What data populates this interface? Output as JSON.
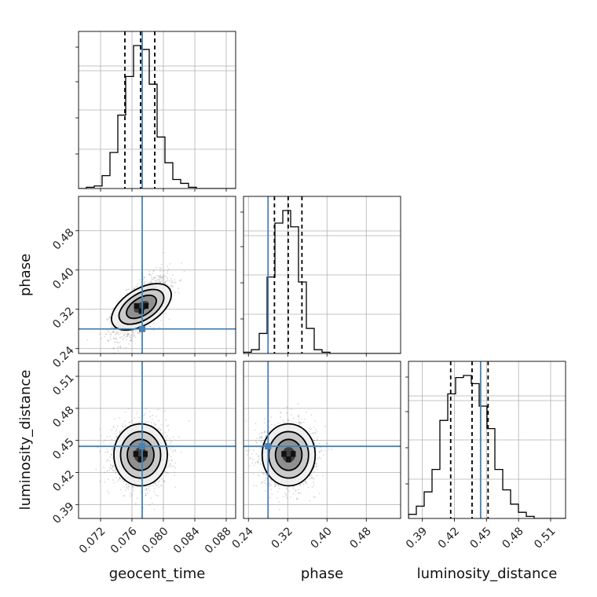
{
  "chart_data": {
    "type": "corner",
    "parameters": [
      {
        "name": "geocent_time",
        "label": "geocent_time",
        "range": [
          0.0692,
          0.0892
        ],
        "ticks": [
          0.072,
          0.076,
          0.08,
          0.084,
          0.088
        ],
        "tick_labels": [
          "0.072",
          "0.076",
          "0.080",
          "0.084",
          "0.088"
        ],
        "truth": 0.0773,
        "quantiles": [
          0.0751,
          0.0771,
          0.0789
        ]
      },
      {
        "name": "phase",
        "label": "phase",
        "range": [
          0.23,
          0.55
        ],
        "ticks": [
          0.24,
          0.32,
          0.4,
          0.48
        ],
        "tick_labels": [
          "0.24",
          "0.32",
          "0.40",
          "0.48"
        ],
        "truth": 0.28,
        "quantiles": [
          0.293,
          0.321,
          0.349
        ]
      },
      {
        "name": "luminosity_distance",
        "label": "luminosity_distance",
        "range": [
          0.377,
          0.524
        ],
        "ticks": [
          0.39,
          0.42,
          0.45,
          0.48,
          0.51
        ],
        "tick_labels": [
          "0.39",
          "0.42",
          "0.45",
          "0.48",
          "0.51"
        ],
        "truth": 0.4445,
        "quantiles": [
          0.4165,
          0.4365,
          0.4515
        ]
      }
    ],
    "histograms": [
      {
        "param": "geocent_time",
        "bin_edges": [
          0.0692,
          0.0702,
          0.0712,
          0.0722,
          0.0732,
          0.0742,
          0.0752,
          0.0762,
          0.0772,
          0.0782,
          0.0792,
          0.0802,
          0.0812,
          0.0822,
          0.0832,
          0.0842,
          0.0852,
          0.0862,
          0.0872,
          0.0882,
          0.0892
        ],
        "counts": [
          0,
          1,
          2,
          10,
          28,
          57,
          87,
          111,
          108,
          81,
          40,
          20,
          7,
          4,
          1,
          0,
          0,
          0,
          0,
          0
        ]
      },
      {
        "param": "phase",
        "bin_edges": [
          0.23,
          0.246,
          0.262,
          0.278,
          0.294,
          0.31,
          0.326,
          0.342,
          0.358,
          0.374,
          0.39,
          0.406,
          0.422,
          0.438,
          0.454,
          0.47,
          0.486,
          0.502,
          0.518,
          0.534,
          0.55
        ],
        "counts": [
          1,
          3,
          16,
          61,
          104,
          114,
          101,
          57,
          20,
          3,
          1,
          0,
          0,
          0,
          0,
          0,
          0,
          0,
          0,
          0
        ]
      },
      {
        "param": "luminosity_distance",
        "bin_edges": [
          0.377,
          0.38435,
          0.3917,
          0.39905,
          0.4064,
          0.41375,
          0.4211,
          0.42845,
          0.4358,
          0.44315,
          0.4505,
          0.45785,
          0.4652,
          0.47255,
          0.4799,
          0.48725,
          0.4946,
          0.50195,
          0.5093,
          0.51665,
          0.524
        ],
        "counts": [
          2,
          6,
          13,
          24,
          48,
          61,
          69,
          70,
          66,
          55,
          44,
          24,
          14,
          7,
          3,
          1,
          0,
          0,
          0,
          0
        ]
      }
    ],
    "scatter_centers": [
      {
        "x": "geocent_time",
        "y": "phase",
        "x_mean": 0.0772,
        "y_mean": 0.325,
        "x_sd": 0.0017,
        "y_sd": 0.03,
        "corr": 0.65
      },
      {
        "x": "geocent_time",
        "y": "luminosity_distance",
        "x_mean": 0.0771,
        "y_mean": 0.4365,
        "x_sd": 0.0017,
        "y_sd": 0.0145,
        "corr": 0.0
      },
      {
        "x": "phase",
        "y": "luminosity_distance",
        "x_mean": 0.322,
        "y_mean": 0.4365,
        "x_sd": 0.027,
        "y_sd": 0.0145,
        "corr": 0.0
      }
    ],
    "contour_levels_sigma": [
      0.5,
      1.0,
      1.5,
      2.0
    ],
    "grid": true,
    "truth_color": "#4682b4",
    "line_color": "#000000",
    "quantile_style": "dashed"
  }
}
